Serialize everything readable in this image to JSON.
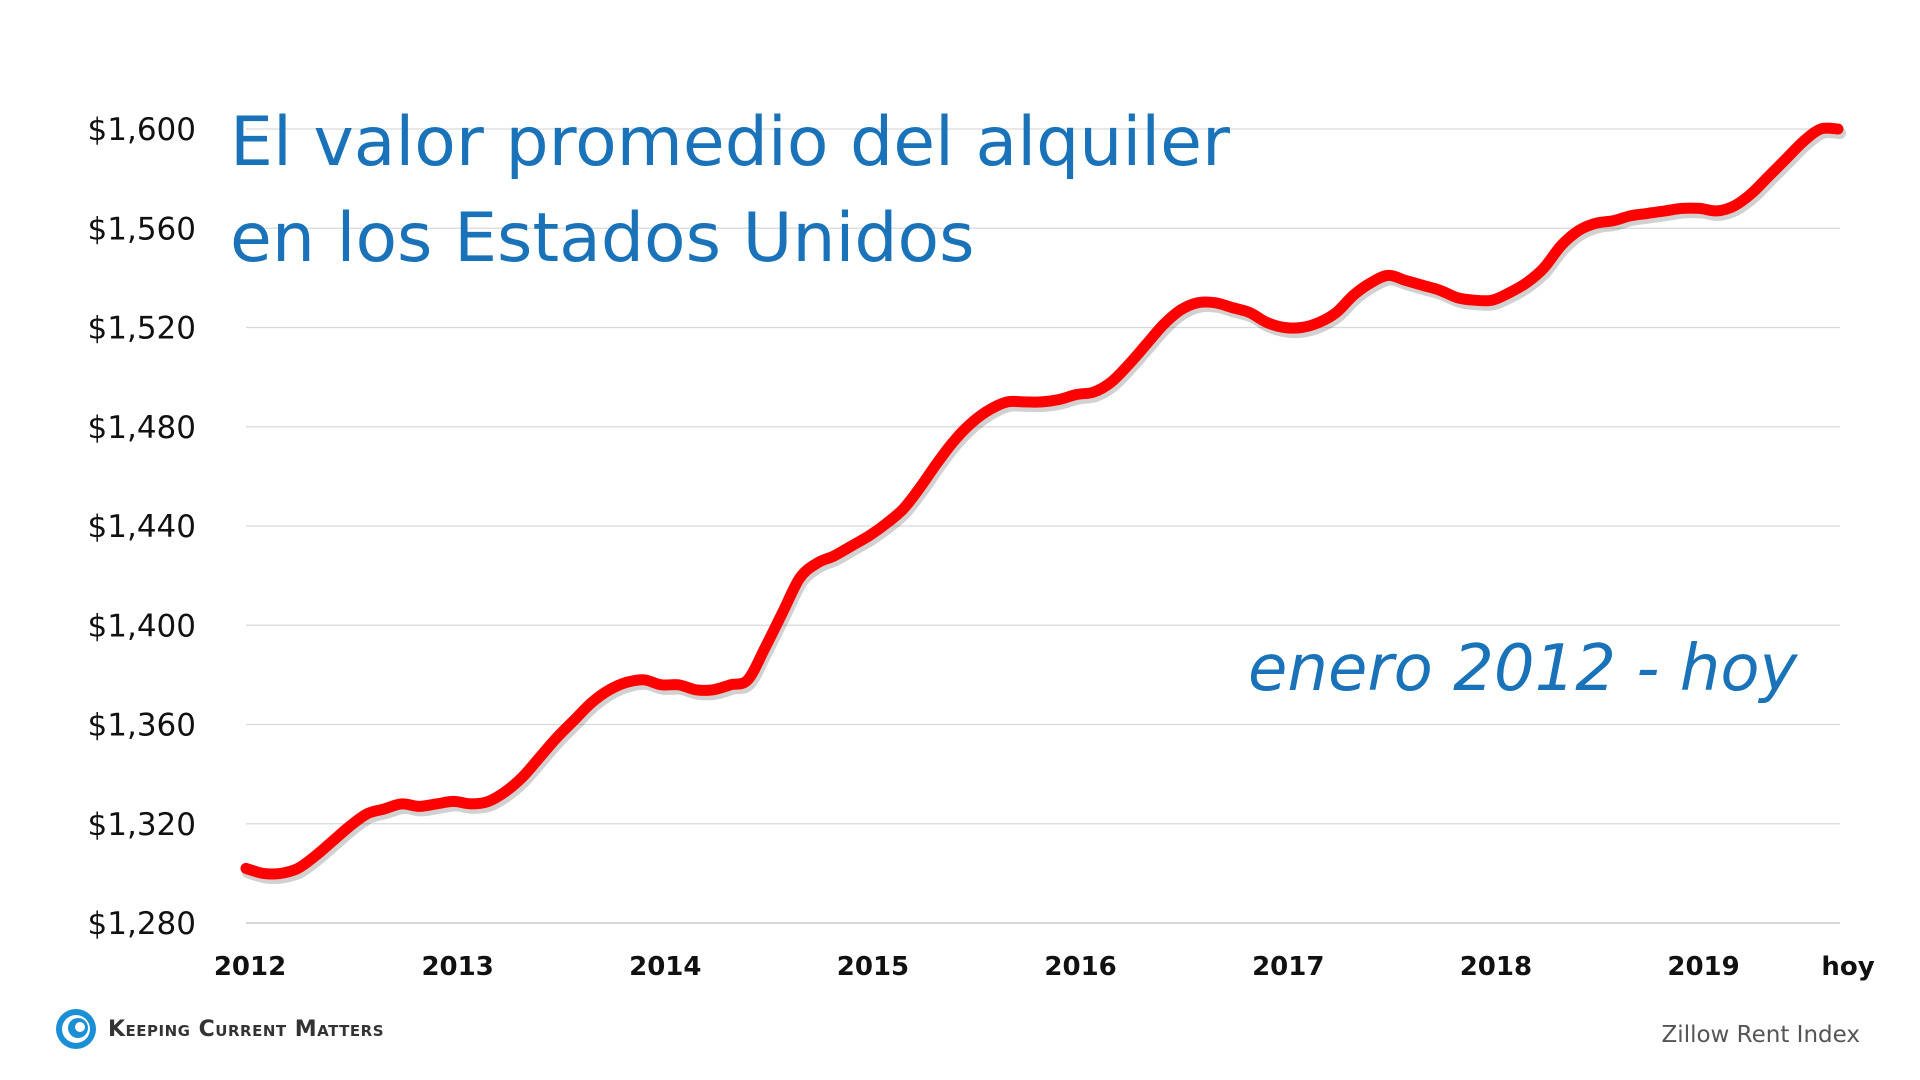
{
  "title": {
    "line1": "El valor promedio del alquiler",
    "line2": "en los Estados Unidos"
  },
  "subtitle": "enero 2012 - hoy",
  "source": "Zillow Rent Index",
  "brand": {
    "name": "Keeping Current Matters",
    "logo_icon": "kcm-swirl-logo-icon"
  },
  "colors": {
    "line": "#ff0000",
    "title": "#1a73b8",
    "grid": "#d9d9d9"
  },
  "chart_data": {
    "type": "line",
    "title": "El valor promedio del alquiler en los Estados Unidos",
    "ylim": [
      1280,
      1600
    ],
    "yticks": [
      1280,
      1320,
      1360,
      1400,
      1440,
      1480,
      1520,
      1560,
      1600
    ],
    "ytick_labels": [
      "$1,280",
      "$1,320",
      "$1,360",
      "$1,400",
      "$1,440",
      "$1,480",
      "$1,520",
      "$1,560",
      "$1,600"
    ],
    "xtick_labels": [
      "2012",
      "2013",
      "2014",
      "2015",
      "2016",
      "2017",
      "2018",
      "2019",
      "hoy"
    ],
    "grid": "horizontal",
    "legend": "none",
    "series": [
      {
        "values": [
          1302,
          1300,
          1300,
          1302,
          1307,
          1313,
          1319,
          1324,
          1326,
          1328,
          1327,
          1328,
          1329,
          1328,
          1329,
          1333,
          1339,
          1347,
          1355,
          1362,
          1369,
          1374,
          1377,
          1378,
          1376,
          1376,
          1374,
          1374,
          1376,
          1378,
          1391,
          1405,
          1419,
          1425,
          1428,
          1432,
          1436,
          1441,
          1447,
          1456,
          1466,
          1475,
          1482,
          1487,
          1490,
          1490,
          1490,
          1491,
          1493,
          1494,
          1498,
          1505,
          1513,
          1521,
          1527,
          1530,
          1530,
          1528,
          1526,
          1522,
          1520,
          1520,
          1522,
          1526,
          1533,
          1538,
          1541,
          1539,
          1537,
          1535,
          1532,
          1531,
          1531,
          1534,
          1538,
          1544,
          1553,
          1559,
          1562,
          1563,
          1565,
          1566,
          1567,
          1568,
          1568,
          1567,
          1569,
          1574,
          1581,
          1588,
          1595,
          1600,
          1600
        ]
      }
    ]
  }
}
